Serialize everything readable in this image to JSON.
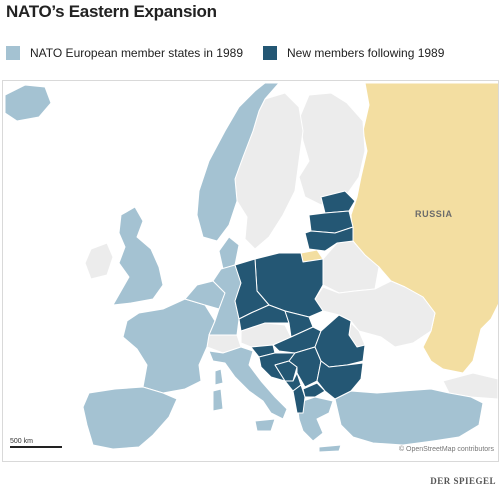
{
  "title": "NATO’s Eastern Expansion",
  "legend": {
    "items": [
      {
        "label": "NATO European member states in 1989",
        "color": "#a4c2d2"
      },
      {
        "label": "New members following 1989",
        "color": "#245774"
      }
    ]
  },
  "map": {
    "colors": {
      "nato_1989": "#a4c2d2",
      "new_members": "#245774",
      "russia": "#f3dea1",
      "other_land": "#ececec",
      "water": "#ffffff",
      "border": "#ffffff"
    },
    "labels": {
      "russia": "RUSSIA"
    },
    "scale_label": "500 km",
    "attribution": "© OpenStreetMap contributors"
  },
  "brand": "DER SPIEGEL"
}
